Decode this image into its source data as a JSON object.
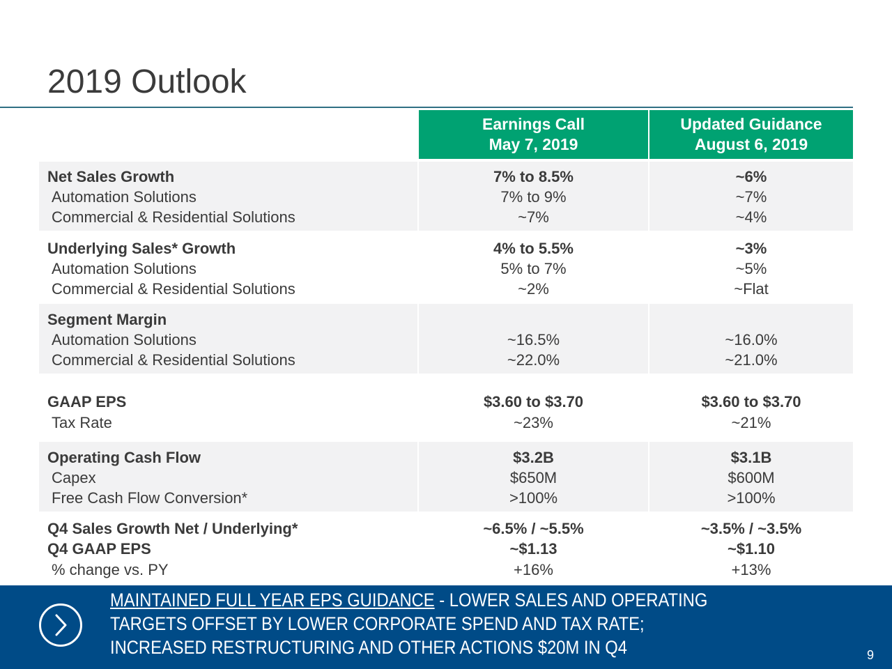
{
  "title": "2019 Outlook",
  "headers": {
    "earnings_call": [
      "Earnings Call",
      "May 7, 2019"
    ],
    "updated_guidance": [
      "Updated Guidance",
      "August 6, 2019"
    ]
  },
  "rows": {
    "net_sales": {
      "label": "Net Sales Growth",
      "earnings": "7% to 8.5%",
      "updated": "~6%"
    },
    "net_auto": {
      "label": "Automation Solutions",
      "earnings": "7% to 9%",
      "updated": "~7%"
    },
    "net_crs": {
      "label": "Commercial & Residential Solutions",
      "earnings": "~7%",
      "updated": "~4%"
    },
    "und_sales": {
      "label": "Underlying Sales* Growth",
      "earnings": "4% to 5.5%",
      "updated": "~3%"
    },
    "und_auto": {
      "label": "Automation Solutions",
      "earnings": "5% to 7%",
      "updated": "~5%"
    },
    "und_crs": {
      "label": "Commercial & Residential Solutions",
      "earnings": "~2%",
      "updated": "~Flat"
    },
    "seg_margin": {
      "label": "Segment Margin",
      "earnings": "",
      "updated": ""
    },
    "seg_auto": {
      "label": "Automation Solutions",
      "earnings": "~16.5%",
      "updated": "~16.0%"
    },
    "seg_crs": {
      "label": "Commercial & Residential Solutions",
      "earnings": "~22.0%",
      "updated": "~21.0%"
    },
    "gaap_eps": {
      "label": "GAAP EPS",
      "earnings": "$3.60 to $3.70",
      "updated": "$3.60 to $3.70"
    },
    "tax_rate": {
      "label": "Tax Rate",
      "earnings": "~23%",
      "updated": "~21%"
    },
    "ocf": {
      "label": "Operating Cash Flow",
      "earnings": "$3.2B",
      "updated": "$3.1B"
    },
    "capex": {
      "label": "Capex",
      "earnings": "$650M",
      "updated": "$600M"
    },
    "fcf": {
      "label": "Free Cash Flow Conversion*",
      "earnings": ">100%",
      "updated": ">100%"
    },
    "q4_sales": {
      "label": "Q4 Sales Growth Net / Underlying*",
      "earnings": "~6.5% / ~5.5%",
      "updated": "~3.5% / ~3.5%"
    },
    "q4_eps": {
      "label": "Q4 GAAP EPS",
      "earnings": "~$1.13",
      "updated": "~$1.10"
    },
    "q4_change": {
      "label": "% change vs. PY",
      "earnings": "+16%",
      "updated": "+13%"
    }
  },
  "banner": {
    "underlined": "MAINTAINED FULL YEAR EPS GUIDANCE",
    "line1_rest": " - LOWER SALES AND OPERATING",
    "line2": "TARGETS OFFSET BY LOWER CORPORATE SPEND AND TAX RATE;",
    "line3": "INCREASED RESTRUCTURING AND OTHER ACTIONS $20M IN Q4"
  },
  "page_number": "9",
  "colors": {
    "header_green": "#00a272",
    "banner_blue": "#004b87",
    "rule": "#2f6f83"
  },
  "icons": {
    "banner": "chevron-right-icon"
  }
}
